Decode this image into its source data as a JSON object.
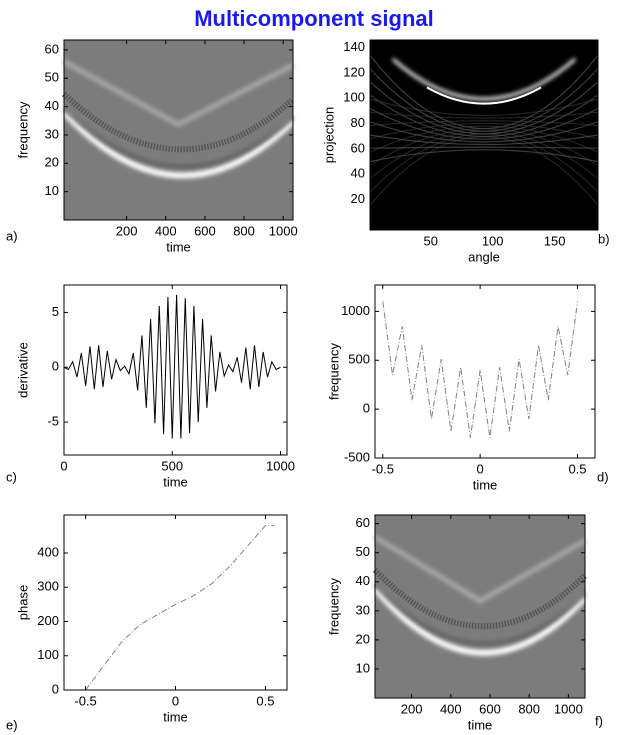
{
  "title": "Multicomponent signal",
  "chart_data": [
    {
      "type": "image",
      "panel": "a)",
      "xlabel": "time",
      "ylabel": "frequency",
      "xlim": [
        -120,
        1050
      ],
      "xticks": [
        200,
        400,
        600,
        800,
        1000
      ],
      "ylim": [
        0,
        63.5
      ],
      "yticks": [
        10,
        20,
        30,
        40,
        50,
        60
      ],
      "colormap": "gray"
    },
    {
      "type": "image",
      "panel": "b)",
      "xlabel": "angle",
      "ylabel": "projection",
      "xlim": [
        1,
        185
      ],
      "xticks": [
        50,
        100,
        150
      ],
      "ylim": [
        -4,
        146
      ],
      "yticks": [
        20,
        40,
        60,
        80,
        100,
        120,
        140
      ],
      "colormap": "dark"
    },
    {
      "type": "line",
      "panel": "c)",
      "xlabel": "time",
      "ylabel": "derivative",
      "xlim": [
        0,
        1030
      ],
      "xticks": [
        0,
        500,
        1000
      ],
      "ylim": [
        -8,
        7.5
      ],
      "yticks": [
        -5,
        0,
        5
      ],
      "color": "#000000",
      "linestyle": "solid",
      "x": [
        0,
        20,
        40,
        60,
        80,
        100,
        120,
        140,
        160,
        180,
        200,
        220,
        240,
        260,
        280,
        300,
        320,
        340,
        360,
        380,
        400,
        420,
        440,
        460,
        480,
        500,
        520,
        540,
        560,
        580,
        600,
        620,
        640,
        660,
        680,
        700,
        720,
        740,
        760,
        780,
        800,
        820,
        840,
        860,
        880,
        900,
        920,
        940,
        960,
        980,
        1000
      ],
      "values": [
        0,
        -0.2,
        0.5,
        -0.9,
        1.3,
        -1.7,
        1.9,
        -2,
        2,
        -1.8,
        1.5,
        -1.1,
        0.7,
        -0.3,
        0.1,
        -0.6,
        1.3,
        -2.1,
        2.9,
        -3.7,
        4.4,
        -5.1,
        5.6,
        -6.1,
        6.4,
        -6.5,
        6.6,
        -6.5,
        6.3,
        -6,
        5.6,
        -5,
        4.4,
        -3.7,
        2.9,
        -2.2,
        1.4,
        -0.8,
        0.2,
        -0.4,
        0.9,
        -1.4,
        1.8,
        -2,
        2,
        -1.8,
        1.4,
        -0.9,
        0.5,
        -0.2,
        0
      ]
    },
    {
      "type": "line",
      "panel": "d)",
      "xlabel": "time",
      "ylabel": "frequency",
      "xlim": [
        -0.54,
        0.59
      ],
      "xticks": [
        -0.5,
        0,
        0.5
      ],
      "ylim": [
        -500,
        1270
      ],
      "yticks": [
        -500,
        0,
        500,
        1000
      ],
      "color": "#808080",
      "linestyle": "dashdot",
      "x": [
        -0.5,
        -0.45,
        -0.4,
        -0.35,
        -0.3,
        -0.25,
        -0.2,
        -0.15,
        -0.1,
        -0.05,
        0,
        0.05,
        0.1,
        0.15,
        0.2,
        0.25,
        0.3,
        0.35,
        0.4,
        0.45,
        0.5
      ],
      "values": [
        1100,
        348,
        848,
        92,
        652,
        -100,
        512,
        -228,
        428,
        -292,
        400,
        -292,
        428,
        -228,
        512,
        -100,
        652,
        92,
        848,
        348,
        1100
      ]
    },
    {
      "type": "line",
      "panel": "e)",
      "xlabel": "time",
      "ylabel": "phase",
      "xlim": [
        -0.62,
        0.62
      ],
      "xticks": [
        -0.5,
        0,
        0.5
      ],
      "ylim": [
        0,
        511
      ],
      "yticks": [
        0,
        100,
        200,
        300,
        400
      ],
      "color": "#808080",
      "linestyle": "dashdot",
      "x": [
        -0.5,
        -0.4,
        -0.3,
        -0.2,
        -0.1,
        0,
        0.1,
        0.2,
        0.3,
        0.4,
        0.5,
        0.55
      ],
      "values": [
        0,
        70,
        140,
        190,
        220,
        250,
        275,
        310,
        360,
        420,
        480,
        480
      ]
    },
    {
      "type": "image",
      "panel": "f)",
      "xlabel": "time",
      "ylabel": "frequency",
      "xlim": [
        13,
        1085
      ],
      "xticks": [
        200,
        400,
        600,
        800,
        1000
      ],
      "ylim": [
        0,
        63
      ],
      "yticks": [
        10,
        20,
        30,
        40,
        50,
        60
      ],
      "colormap": "gray"
    }
  ]
}
